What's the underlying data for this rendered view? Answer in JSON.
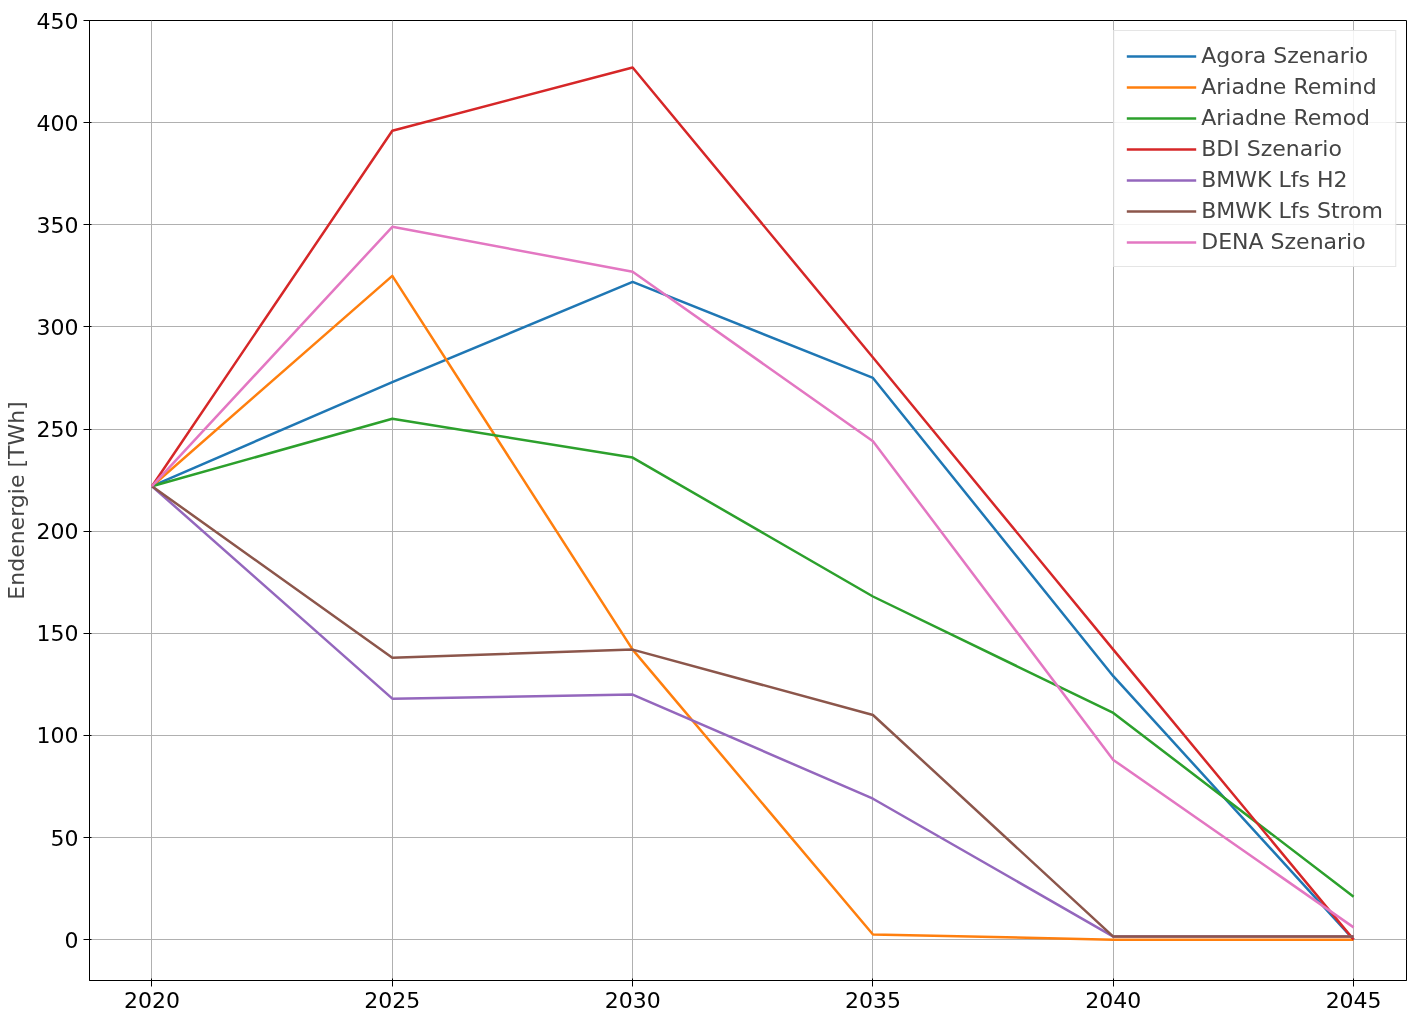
{
  "chart_data": {
    "type": "line",
    "ylabel": "Endenergie [TWh]",
    "x": [
      2020,
      2025,
      2030,
      2035,
      2040,
      2045
    ],
    "xlim": [
      2018.7,
      2046.1
    ],
    "ylim": [
      -20,
      450
    ],
    "xticks": [
      2020,
      2025,
      2030,
      2035,
      2040,
      2045
    ],
    "yticks": [
      0,
      50,
      100,
      150,
      200,
      250,
      300,
      350,
      400,
      450
    ],
    "grid": true,
    "legend": "top right",
    "marker": "none",
    "line_style": "solid",
    "series": [
      {
        "name": "Agora Szenario",
        "color": "#1f77b4",
        "values": [
          222,
          273,
          322,
          275,
          129,
          0
        ]
      },
      {
        "name": "Ariadne Remind",
        "color": "#ff7f0e",
        "values": [
          222,
          325,
          142,
          2.5,
          0,
          0
        ]
      },
      {
        "name": "Ariadne Remod",
        "color": "#2ca02c",
        "values": [
          222,
          255,
          236,
          168,
          111,
          21
        ]
      },
      {
        "name": "BDI Szenario",
        "color": "#d62728",
        "values": [
          222,
          396,
          427,
          285,
          142,
          0
        ]
      },
      {
        "name": "BMWK Lfs H2",
        "color": "#9467bd",
        "values": [
          222,
          118,
          120,
          69,
          1.5,
          1.5
        ]
      },
      {
        "name": "BMWK Lfs Strom",
        "color": "#8c564b",
        "values": [
          222,
          138,
          142,
          110,
          1.5,
          1.5
        ]
      },
      {
        "name": "DENA Szenario",
        "color": "#e377c2",
        "values": [
          222,
          349,
          327,
          244,
          88,
          6
        ]
      }
    ]
  }
}
